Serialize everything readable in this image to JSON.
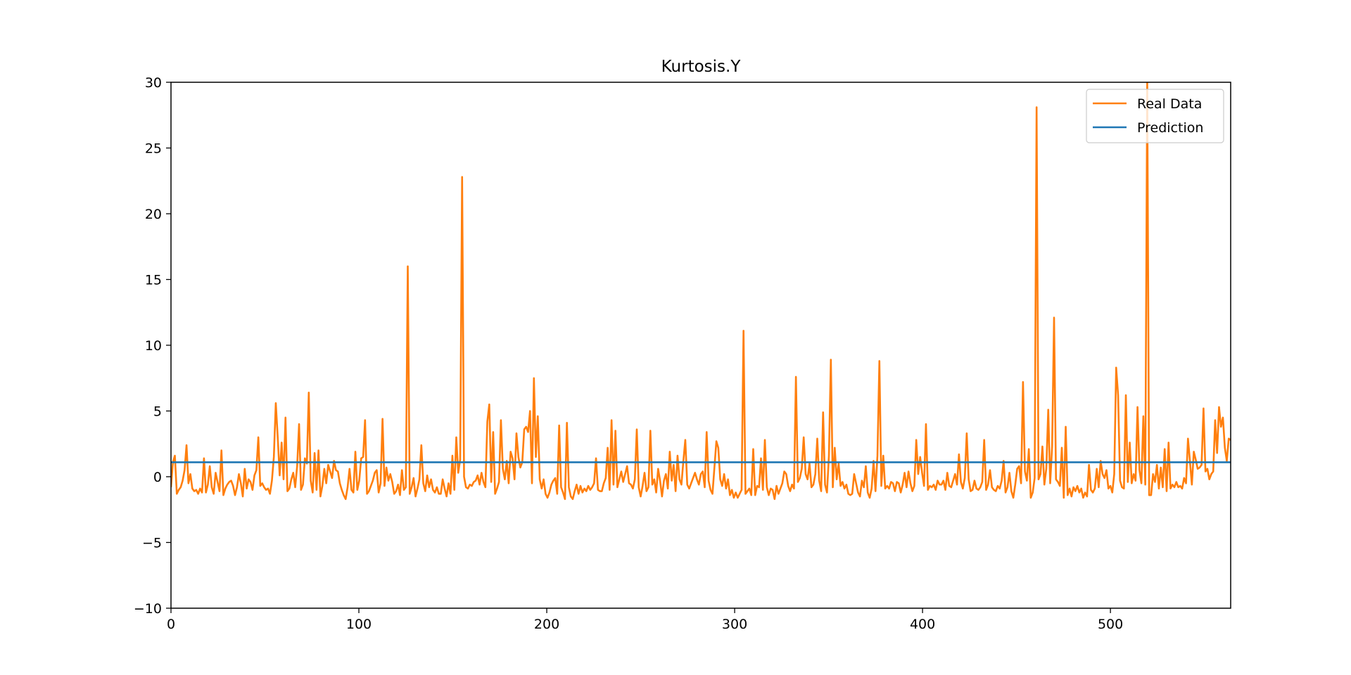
{
  "chart_data": {
    "type": "line",
    "title": "Kurtosis.Y",
    "xlabel": "",
    "ylabel": "",
    "xlim": [
      0,
      564
    ],
    "ylim": [
      -10,
      30
    ],
    "x_ticks": [
      0,
      100,
      200,
      300,
      400,
      500
    ],
    "y_ticks": [
      -10,
      -5,
      0,
      5,
      10,
      15,
      20,
      25,
      30
    ],
    "y_tick_labels": [
      "−10",
      "−5",
      "0",
      "5",
      "10",
      "15",
      "20",
      "25",
      "30"
    ],
    "grid": false,
    "legend_position": "top-right",
    "series": [
      {
        "name": "Real Data",
        "color": "#ff7f0e",
        "values": [
          -0.8,
          1.1,
          1.6,
          -1.3,
          -1.0,
          -0.8,
          -0.3,
          0.5,
          2.4,
          -0.5,
          0.2,
          -0.9,
          -1.1,
          -1.0,
          -1.3,
          -0.9,
          -1.2,
          1.4,
          -1.2,
          -0.6,
          0.8,
          -0.8,
          -1.3,
          0.3,
          -0.4,
          -1.1,
          2.0,
          -1.4,
          -0.9,
          -0.6,
          -0.4,
          -0.3,
          -0.7,
          -1.4,
          -0.8,
          0.2,
          -0.5,
          -1.5,
          0.6,
          -0.9,
          -0.2,
          -0.4,
          -1.0,
          0.1,
          0.5,
          3.0,
          -0.7,
          -0.5,
          -0.8,
          -1.0,
          -0.9,
          -1.3,
          -0.3,
          1.5,
          5.6,
          3.0,
          0.1,
          2.6,
          -0.2,
          4.5,
          -1.1,
          -0.9,
          -0.2,
          0.3,
          -0.8,
          0.8,
          4.0,
          -1.0,
          -0.6,
          1.4,
          1.0,
          6.4,
          -0.3,
          -1.2,
          1.8,
          -1.0,
          2.0,
          -1.5,
          -0.7,
          0.6,
          -0.5,
          0.9,
          0.4,
          -0.1,
          1.2,
          0.5,
          0.4,
          -0.5,
          -1.0,
          -1.4,
          -1.7,
          -0.8,
          0.6,
          -1.0,
          -1.2,
          1.9,
          -1.0,
          -0.3,
          1.4,
          1.5,
          4.3,
          -1.3,
          -1.1,
          -0.7,
          -0.3,
          0.3,
          0.5,
          -1.2,
          -0.5,
          4.4,
          -0.7,
          0.7,
          -0.3,
          0.2,
          -0.4,
          -1.3,
          -1.1,
          -0.6,
          -1.4,
          0.5,
          -1.0,
          -0.8,
          16.0,
          -1.3,
          -0.8,
          -0.1,
          -1.5,
          -0.9,
          -0.2,
          2.4,
          -0.5,
          -1.1,
          0.1,
          -0.8,
          -0.2,
          -1.0,
          -1.2,
          -0.8,
          -1.3,
          -1.3,
          -0.2,
          -0.9,
          -1.5,
          -0.5,
          -1.3,
          1.6,
          -1.0,
          3.0,
          0.3,
          1.3,
          22.8,
          0.0,
          -0.8,
          -0.9,
          -0.6,
          -0.7,
          -0.4,
          -0.3,
          0.1,
          -0.6,
          0.3,
          -0.4,
          -0.8,
          4.2,
          5.5,
          -0.4,
          3.4,
          -1.3,
          -0.9,
          -0.4,
          4.3,
          0.6,
          -0.2,
          1.2,
          -0.5,
          1.9,
          1.4,
          -0.2,
          3.3,
          1.5,
          0.7,
          1.1,
          3.6,
          3.8,
          3.4,
          5.0,
          -0.5,
          7.5,
          1.5,
          4.6,
          -0.2,
          -0.9,
          -0.2,
          -1.3,
          -1.6,
          -1.2,
          -0.6,
          -0.3,
          -0.1,
          -1.3,
          3.9,
          -0.8,
          -1.2,
          -1.7,
          4.1,
          -0.8,
          -1.5,
          -1.7,
          -1.1,
          -0.6,
          -1.3,
          -0.7,
          -1.2,
          -0.9,
          -1.1,
          -0.7,
          -1.0,
          -0.8,
          -0.5,
          1.4,
          -1.0,
          -1.1,
          -1.1,
          -0.5,
          -0.1,
          2.2,
          -1.0,
          4.3,
          -0.6,
          3.5,
          -0.8,
          -0.2,
          0.4,
          -0.4,
          0.2,
          0.8,
          -0.5,
          -0.6,
          -0.9,
          -0.2,
          3.6,
          -0.8,
          -1.5,
          -0.7,
          0.3,
          -1.1,
          -0.8,
          3.5,
          -0.6,
          -0.2,
          -1.2,
          0.6,
          -0.3,
          -1.5,
          -0.3,
          0.2,
          -0.9,
          1.9,
          -0.3,
          0.9,
          -1.1,
          1.6,
          -0.2,
          -0.6,
          1.2,
          2.8,
          -0.6,
          -0.9,
          -0.5,
          -0.1,
          0.3,
          -0.2,
          -0.6,
          0.2,
          0.4,
          -0.8,
          3.4,
          -0.3,
          -1.0,
          -1.3,
          0.7,
          2.7,
          2.2,
          -0.2,
          -0.7,
          0.2,
          -0.9,
          -0.2,
          -1.4,
          -1.0,
          -1.6,
          -1.2,
          -1.6,
          -1.3,
          -1.0,
          11.1,
          -1.3,
          -1.1,
          -0.9,
          -1.4,
          2.1,
          -1.4,
          -0.7,
          -0.8,
          1.4,
          -1.0,
          2.8,
          -0.8,
          -1.4,
          -0.9,
          -1.0,
          -1.7,
          -0.7,
          -1.3,
          -0.9,
          -0.5,
          0.4,
          0.2,
          -0.7,
          -1.1,
          -0.6,
          -0.9,
          7.6,
          -0.4,
          -0.1,
          0.6,
          3.0,
          0.2,
          -0.2,
          1.0,
          -0.8,
          -0.6,
          0.2,
          2.9,
          -0.3,
          -1.1,
          4.9,
          -0.6,
          -1.2,
          1.6,
          8.9,
          -0.8,
          2.2,
          -0.2,
          1.0,
          -0.7,
          -0.4,
          -0.9,
          -0.6,
          -1.3,
          -1.4,
          -1.3,
          0.2,
          -0.5,
          -1.2,
          -1.5,
          -0.3,
          -0.8,
          0.8,
          -1.2,
          -1.6,
          -0.9,
          1.2,
          -1.1,
          1.6,
          8.8,
          -0.7,
          1.6,
          -0.9,
          -0.7,
          -0.9,
          -0.4,
          -0.5,
          -1.1,
          -0.4,
          -0.5,
          -1.2,
          -0.6,
          0.3,
          -0.8,
          0.4,
          -0.5,
          -1.1,
          -0.7,
          2.8,
          0.2,
          1.5,
          0.3,
          -0.7,
          4.0,
          -1.0,
          -0.7,
          -0.8,
          -0.6,
          -1.0,
          -0.3,
          -0.6,
          -0.6,
          -0.3,
          -1.0,
          0.3,
          -0.7,
          -0.8,
          -0.3,
          0.2,
          -0.6,
          1.7,
          -0.4,
          -0.9,
          -0.1,
          3.3,
          -0.2,
          -1.1,
          -1.0,
          -0.3,
          -0.9,
          -1.0,
          -0.8,
          -0.4,
          2.8,
          -1.0,
          -0.6,
          0.5,
          -0.8,
          -1.0,
          -1.1,
          -0.7,
          -0.9,
          -0.3,
          1.2,
          -1.2,
          -0.8,
          0.3,
          -1.1,
          -1.6,
          -0.6,
          0.6,
          0.8,
          -0.5,
          7.2,
          0.4,
          -0.3,
          2.1,
          -1.6,
          -1.2,
          -0.1,
          28.1,
          -0.2,
          0.2,
          2.3,
          -0.6,
          0.6,
          5.1,
          -0.5,
          2.3,
          12.1,
          -0.2,
          -0.4,
          -0.7,
          2.2,
          -1.6,
          3.8,
          -1.4,
          -0.9,
          -1.5,
          -0.8,
          -1.1,
          -0.7,
          -1.2,
          -0.9,
          -1.6,
          -1.2,
          -1.5,
          0.9,
          -1.0,
          -1.2,
          -0.9,
          0.6,
          -0.8,
          1.2,
          0.2,
          -0.1,
          0.5,
          -0.9,
          -0.7,
          -1.2,
          0.2,
          8.3,
          6.2,
          -0.3,
          -0.8,
          -0.9,
          6.2,
          -0.4,
          2.6,
          -0.5,
          0.2,
          -0.3,
          5.3,
          0.5,
          -0.5,
          4.6,
          -0.6,
          30.0,
          -1.4,
          -1.4,
          0.2,
          -0.4,
          0.9,
          -0.9,
          0.7,
          -0.8,
          2.1,
          -1.1,
          2.6,
          -0.9,
          -0.6,
          -0.8,
          -0.4,
          -0.8,
          -0.7,
          -0.9,
          -0.1,
          -0.5,
          2.9,
          1.2,
          -0.6,
          1.9,
          1.3,
          0.6,
          0.7,
          0.9,
          5.2,
          0.4,
          0.6,
          -0.2,
          0.2,
          0.4,
          4.3,
          1.8,
          5.3,
          3.8,
          4.5,
          2.2,
          1.2,
          2.9,
          2.8
        ]
      },
      {
        "name": "Prediction",
        "color": "#1f77b4",
        "values": [
          1.1,
          1.1
        ]
      }
    ]
  }
}
